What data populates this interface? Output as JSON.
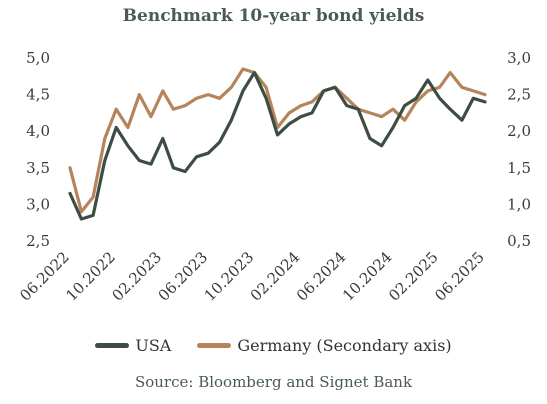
{
  "chart_data": {
    "type": "line",
    "title": "Benchmark 10-year bond yields",
    "source": "Source: Bloomberg and Signet Bank",
    "xlabel": "",
    "ylabel": "",
    "x_tick_labels": [
      "06.2022",
      "10.2022",
      "02.2023",
      "06.2023",
      "10.2023",
      "02.2024",
      "06.2024",
      "10.2024",
      "02.2025",
      "06.2025"
    ],
    "y_left": {
      "lim": [
        2.5,
        5.0
      ],
      "ticks": [
        "2,5",
        "3,0",
        "3,5",
        "4,0",
        "4,5",
        "5,0"
      ]
    },
    "y_right": {
      "lim": [
        0.5,
        3.0
      ],
      "ticks": [
        "0,5",
        "1,0",
        "1,5",
        "2,0",
        "2,5",
        "3,0"
      ]
    },
    "grid": false,
    "legend_position": "bottom",
    "series": [
      {
        "name": "USA",
        "axis": "left",
        "color": "#3d4d43",
        "x": [
          "2022-06",
          "2022-07",
          "2022-08",
          "2022-09",
          "2022-10",
          "2022-11",
          "2022-12",
          "2023-01",
          "2023-02",
          "2023-03",
          "2023-04",
          "2023-05",
          "2023-06",
          "2023-07",
          "2023-08",
          "2023-09",
          "2023-10",
          "2023-11",
          "2023-12",
          "2024-01",
          "2024-02",
          "2024-03",
          "2024-04",
          "2024-05",
          "2024-06",
          "2024-07",
          "2024-08",
          "2024-09",
          "2024-10",
          "2024-11",
          "2024-12",
          "2025-01",
          "2025-02",
          "2025-03",
          "2025-04",
          "2025-05",
          "2025-06"
        ],
        "values": [
          3.15,
          2.8,
          2.85,
          3.6,
          4.05,
          3.8,
          3.6,
          3.55,
          3.9,
          3.5,
          3.45,
          3.65,
          3.7,
          3.85,
          4.15,
          4.55,
          4.8,
          4.45,
          3.95,
          4.1,
          4.2,
          4.25,
          4.55,
          4.6,
          4.35,
          4.3,
          3.9,
          3.8,
          4.05,
          4.35,
          4.45,
          4.7,
          4.45,
          4.3,
          4.15,
          4.45,
          4.4
        ]
      },
      {
        "name": "Germany (Secondary axis)",
        "axis": "right",
        "color": "#b5845a",
        "x": [
          "2022-06",
          "2022-07",
          "2022-08",
          "2022-09",
          "2022-10",
          "2022-11",
          "2022-12",
          "2023-01",
          "2023-02",
          "2023-03",
          "2023-04",
          "2023-05",
          "2023-06",
          "2023-07",
          "2023-08",
          "2023-09",
          "2023-10",
          "2023-11",
          "2023-12",
          "2024-01",
          "2024-02",
          "2024-03",
          "2024-04",
          "2024-05",
          "2024-06",
          "2024-07",
          "2024-08",
          "2024-09",
          "2024-10",
          "2024-11",
          "2024-12",
          "2025-01",
          "2025-02",
          "2025-03",
          "2025-04",
          "2025-05",
          "2025-06"
        ],
        "values": [
          1.5,
          0.9,
          1.1,
          1.9,
          2.3,
          2.05,
          2.5,
          2.2,
          2.55,
          2.3,
          2.35,
          2.45,
          2.5,
          2.45,
          2.6,
          2.85,
          2.8,
          2.6,
          2.05,
          2.25,
          2.35,
          2.4,
          2.55,
          2.6,
          2.45,
          2.3,
          2.25,
          2.2,
          2.3,
          2.15,
          2.4,
          2.55,
          2.6,
          2.8,
          2.6,
          2.55,
          2.5
        ]
      }
    ]
  }
}
